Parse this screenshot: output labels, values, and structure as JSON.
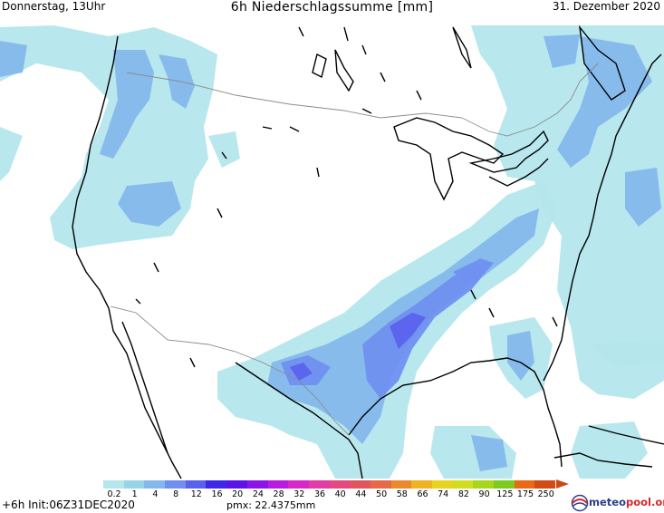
{
  "header": {
    "day_time": "Donnerstag, 13Uhr",
    "title": "6h Niederschlagssumme [mm]",
    "date": "31. Dezember 2020"
  },
  "legend": {
    "labels": [
      "0.2",
      "1",
      "4",
      "8",
      "12",
      "16",
      "20",
      "24",
      "28",
      "32",
      "36",
      "40",
      "44",
      "50",
      "58",
      "66",
      "74",
      "82",
      "90",
      "125",
      "175",
      "250"
    ],
    "colors": [
      "#b4e6ec",
      "#98d4e6",
      "#84b8ec",
      "#7090f0",
      "#5a62ec",
      "#3c28e6",
      "#5a14e8",
      "#8a16e6",
      "#b81ade",
      "#d628c8",
      "#e23ca6",
      "#e24a80",
      "#e0565c",
      "#e66a48",
      "#ea8a2e",
      "#eeb424",
      "#e8d41e",
      "#d2de1c",
      "#a8d61c",
      "#80ca20",
      "#e86a14",
      "#d24a14"
    ]
  },
  "footer": {
    "run_info": "+6h  Init:06Z31DEC2020",
    "pmx": "pmx: 22.4375mm"
  },
  "logo": {
    "part1": "meteo",
    "part2": "pool.org"
  },
  "map": {
    "colors": {
      "light": "#b4e6ec",
      "l2": "#98d4e6",
      "mid": "#84b8ec",
      "dark": "#7090f0",
      "darker": "#5a62ec",
      "deep": "#3c28e6",
      "coast": "#000000",
      "border": "#8c8c8c"
    }
  }
}
